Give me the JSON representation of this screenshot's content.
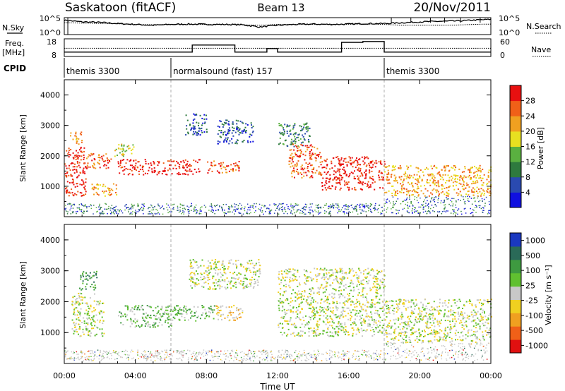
{
  "header": {
    "radar": "Saskatoon (fitACF)",
    "beam": "Beam 13",
    "date": "20/Nov/2011"
  },
  "noise_panel": {
    "left_label": "N.Sky",
    "right_label": "N.Search",
    "left_ticks": [
      "10^5",
      "10^0"
    ],
    "right_ticks": [
      "10^5",
      "10^0"
    ]
  },
  "freq_panel": {
    "left_label_line1": "Freq.",
    "left_label_line2": "[MHz]",
    "right_label": "Nave",
    "left_ticks": [
      "18",
      "8"
    ],
    "right_ticks": [
      "60",
      "0"
    ]
  },
  "cpid": {
    "label": "CPID",
    "segments": [
      {
        "start_hour": 0,
        "name": "themis 3300"
      },
      {
        "start_hour": 6,
        "name": "normalsound (fast) 157"
      },
      {
        "start_hour": 18,
        "name": "themis 3300"
      }
    ]
  },
  "power_panel": {
    "ylabel": "Slant Range [km]",
    "ylim": [
      0,
      4500
    ],
    "yticks": [
      "1000",
      "2000",
      "3000",
      "4000"
    ],
    "colorbar_label": "Power [dB]",
    "colorbar_ticks": [
      "4",
      "8",
      "12",
      "16",
      "20",
      "24",
      "28"
    ],
    "colors": [
      "#1010e0",
      "#2a4ab0",
      "#2e7a3e",
      "#5ab040",
      "#e8e020",
      "#f0a020",
      "#f06018",
      "#e81010"
    ]
  },
  "velocity_panel": {
    "ylabel": "Slant Range [km]",
    "ylim": [
      0,
      4500
    ],
    "yticks": [
      "1000",
      "2000",
      "3000",
      "4000"
    ],
    "colorbar_label": "Velocity [m s⁻¹]",
    "colorbar_ticks": [
      "1000",
      "500",
      "100",
      "25",
      "-25",
      "-100",
      "-500",
      "-1000"
    ],
    "colors": [
      "#1a38c0",
      "#2a6a58",
      "#3e9a40",
      "#60c030",
      "#c8c8c8",
      "#f0d020",
      "#f0a020",
      "#f06018",
      "#e01010"
    ]
  },
  "time_axis": {
    "xlabel": "Time UT",
    "ticks": [
      "00:00",
      "04:00",
      "08:00",
      "12:00",
      "16:00",
      "20:00",
      "00:00"
    ]
  },
  "chart_data": [
    {
      "type": "line",
      "title": "N.Sky / N.Search",
      "x_hours": [
        0,
        1,
        2,
        3,
        4,
        5,
        6,
        7,
        8,
        9,
        10,
        11,
        12,
        13,
        14,
        15,
        16,
        17,
        18,
        19,
        20,
        21,
        22,
        23,
        24
      ],
      "noise_sky_frac": [
        0.85,
        0.75,
        0.72,
        0.65,
        0.6,
        0.55,
        0.6,
        0.62,
        0.6,
        0.6,
        0.58,
        0.45,
        0.55,
        0.6,
        0.62,
        0.6,
        0.62,
        0.65,
        0.65,
        0.7,
        0.75,
        0.78,
        0.8,
        0.85,
        0.9
      ],
      "noise_search_frac": [
        0.7,
        0.68,
        0.66,
        0.64,
        0.6,
        0.58,
        0.6,
        0.6,
        0.6,
        0.6,
        0.58,
        0.55,
        0.6,
        0.6,
        0.6,
        0.6,
        0.6,
        0.62,
        0.6,
        0.55,
        0.55,
        0.55,
        0.56,
        0.6,
        0.62
      ]
    },
    {
      "type": "line",
      "title": "Freq / Nave",
      "freq_steps": [
        {
          "start": 0,
          "end": 7.2,
          "mhz": 10.5
        },
        {
          "start": 7.2,
          "end": 9.6,
          "mhz": 14.5
        },
        {
          "start": 9.6,
          "end": 11.4,
          "mhz": 10.5
        },
        {
          "start": 11.4,
          "end": 12.0,
          "mhz": 12.5
        },
        {
          "start": 12.0,
          "end": 15.6,
          "mhz": 10.5
        },
        {
          "start": 15.6,
          "end": 16.8,
          "mhz": 16.0
        },
        {
          "start": 16.8,
          "end": 18.0,
          "mhz": 16.5
        },
        {
          "start": 18.0,
          "end": 24.0,
          "mhz": 10.5
        }
      ],
      "nave_level": 28
    },
    {
      "type": "heatmap",
      "title": "Power",
      "x_unit": "hour UT",
      "y_unit": "km",
      "blobs": [
        {
          "t0": 0.0,
          "t1": 1.2,
          "r0": 700,
          "r1": 2300,
          "level": 7
        },
        {
          "t0": 0.3,
          "t1": 1.0,
          "r0": 2400,
          "r1": 2800,
          "level": 5
        },
        {
          "t0": 1.0,
          "t1": 2.6,
          "r0": 1600,
          "r1": 2100,
          "level": 6
        },
        {
          "t0": 1.5,
          "t1": 3.0,
          "r0": 700,
          "r1": 1100,
          "level": 5
        },
        {
          "t0": 2.8,
          "t1": 4.0,
          "r0": 2000,
          "r1": 2400,
          "level": 4
        },
        {
          "t0": 3.0,
          "t1": 5.8,
          "r0": 1400,
          "r1": 1900,
          "level": 7
        },
        {
          "t0": 5.8,
          "t1": 7.6,
          "r0": 1400,
          "r1": 1900,
          "level": 7
        },
        {
          "t0": 8.0,
          "t1": 9.8,
          "r0": 1450,
          "r1": 1850,
          "level": 6
        },
        {
          "t0": 6.8,
          "t1": 8.0,
          "r0": 2700,
          "r1": 3400,
          "level": 1
        },
        {
          "t0": 8.6,
          "t1": 10.6,
          "r0": 2400,
          "r1": 3200,
          "level": 1
        },
        {
          "t0": 12.0,
          "t1": 13.8,
          "r0": 2300,
          "r1": 3100,
          "level": 2
        },
        {
          "t0": 12.6,
          "t1": 14.4,
          "r0": 1300,
          "r1": 2400,
          "level": 6
        },
        {
          "t0": 14.4,
          "t1": 18.0,
          "r0": 900,
          "r1": 2000,
          "level": 7
        },
        {
          "t0": 18.0,
          "t1": 24.0,
          "r0": 700,
          "r1": 1700,
          "level": 5
        }
      ]
    },
    {
      "type": "heatmap",
      "title": "Velocity",
      "x_unit": "hour UT",
      "y_unit": "km",
      "blobs": [
        {
          "t0": 0.4,
          "t1": 2.2,
          "r0": 900,
          "r1": 2300,
          "level": 4
        },
        {
          "t0": 0.8,
          "t1": 1.8,
          "r0": 2400,
          "r1": 3000,
          "level": 2
        },
        {
          "t0": 3.0,
          "t1": 6.0,
          "r0": 1200,
          "r1": 1900,
          "level": 3
        },
        {
          "t0": 6.0,
          "t1": 8.5,
          "r0": 1400,
          "r1": 1900,
          "level": 3
        },
        {
          "t0": 8.5,
          "t1": 10.0,
          "r0": 1400,
          "r1": 1900,
          "level": 5
        },
        {
          "t0": 7.0,
          "t1": 11.0,
          "r0": 2400,
          "r1": 3400,
          "level": 4
        },
        {
          "t0": 12.0,
          "t1": 18.0,
          "r0": 900,
          "r1": 3100,
          "level": 4
        },
        {
          "t0": 18.0,
          "t1": 24.0,
          "r0": 700,
          "r1": 2100,
          "level": 4
        }
      ]
    }
  ]
}
